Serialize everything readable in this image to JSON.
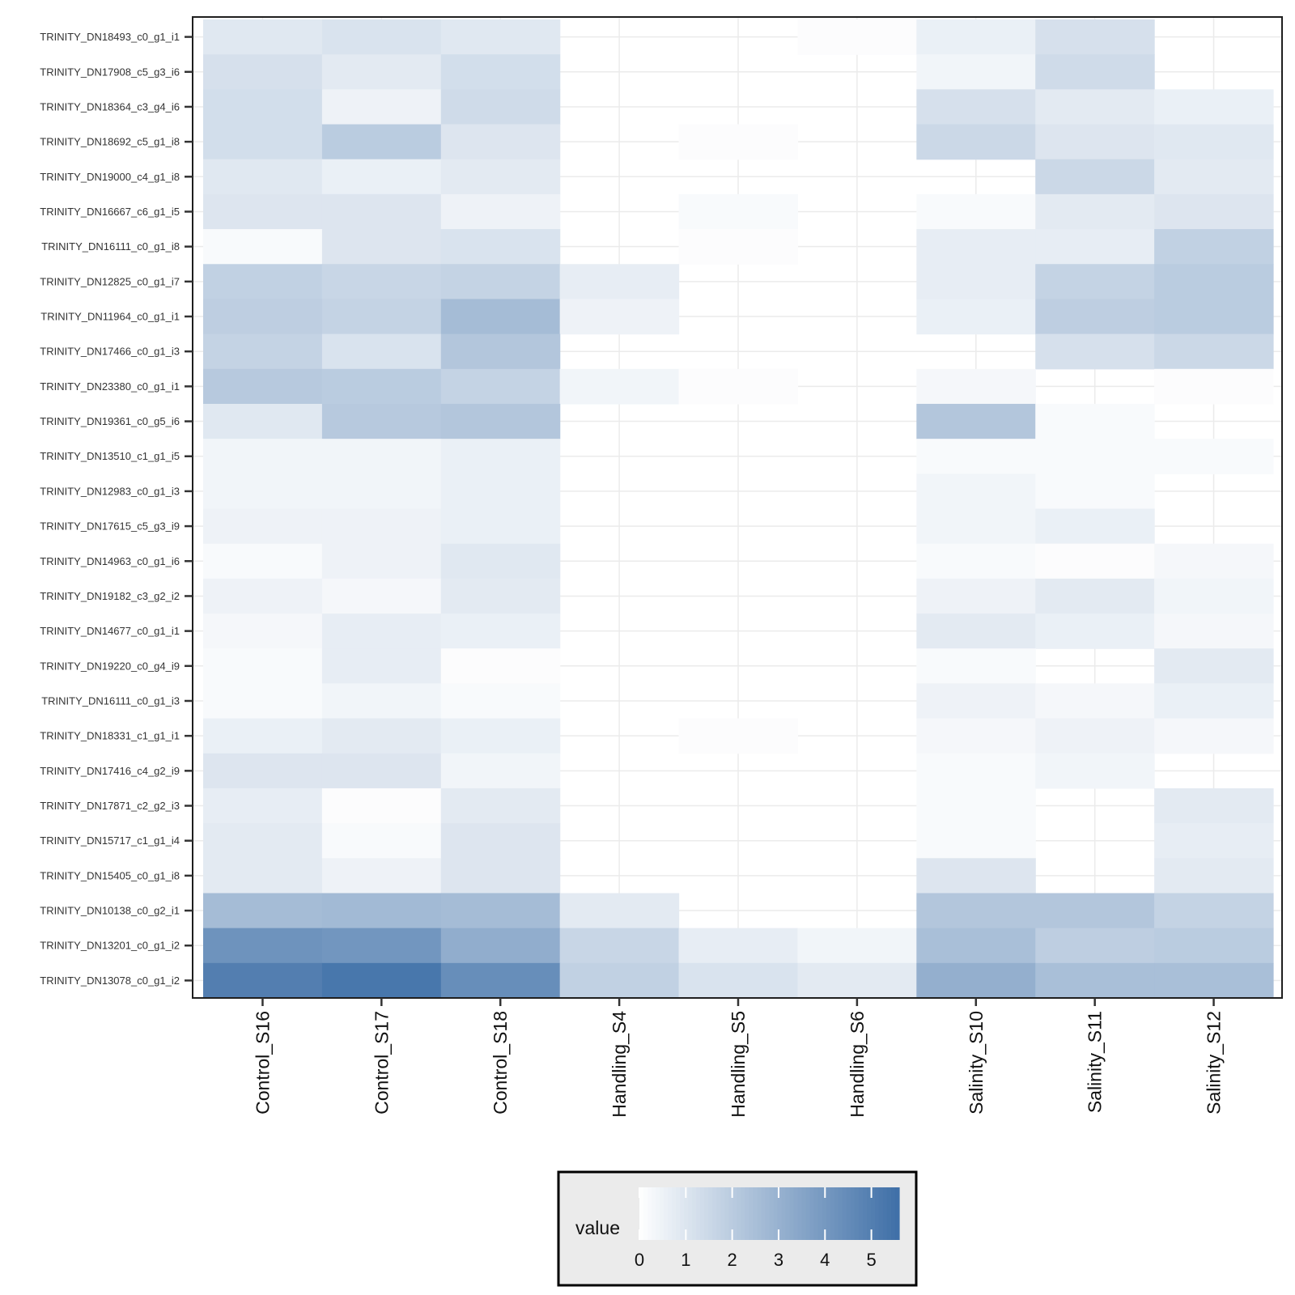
{
  "chart_data": {
    "type": "heatmap",
    "title": "",
    "xlabel": "",
    "ylabel": "",
    "x": [
      "Control_S16",
      "Control_S17",
      "Control_S18",
      "Handling_S4",
      "Handling_S5",
      "Handling_S6",
      "Salinity_S10",
      "Salinity_S11",
      "Salinity_S12"
    ],
    "y": [
      "TRINITY_DN18493_c0_g1_i1",
      "TRINITY_DN17908_c5_g3_i6",
      "TRINITY_DN18364_c3_g4_i6",
      "TRINITY_DN18692_c5_g1_i8",
      "TRINITY_DN19000_c4_g1_i8",
      "TRINITY_DN16667_c6_g1_i5",
      "TRINITY_DN16111_c0_g1_i8",
      "TRINITY_DN12825_c0_g1_i7",
      "TRINITY_DN11964_c0_g1_i1",
      "TRINITY_DN17466_c0_g1_i3",
      "TRINITY_DN23380_c0_g1_i1",
      "TRINITY_DN19361_c0_g5_i6",
      "TRINITY_DN13510_c1_g1_i5",
      "TRINITY_DN12983_c0_g1_i3",
      "TRINITY_DN17615_c5_g3_i9",
      "TRINITY_DN14963_c0_g1_i6",
      "TRINITY_DN19182_c3_g2_i2",
      "TRINITY_DN14677_c0_g1_i1",
      "TRINITY_DN19220_c0_g4_i9",
      "TRINITY_DN16111_c0_g1_i3",
      "TRINITY_DN18331_c1_g1_i1",
      "TRINITY_DN17416_c4_g2_i9",
      "TRINITY_DN17871_c2_g2_i3",
      "TRINITY_DN15717_c1_g1_i4",
      "TRINITY_DN15405_c0_g1_i8",
      "TRINITY_DN10138_c0_g2_i1",
      "TRINITY_DN13201_c0_g1_i2",
      "TRINITY_DN13078_c0_g1_i2"
    ],
    "values": [
      [
        0.9,
        1.1,
        0.9,
        0,
        0,
        0.1,
        0.6,
        1.2,
        0
      ],
      [
        1.2,
        0.8,
        1.3,
        0,
        0,
        0,
        0.4,
        1.4,
        0
      ],
      [
        1.3,
        0.5,
        1.4,
        0,
        0,
        0,
        1.2,
        0.8,
        0.6
      ],
      [
        1.3,
        2.0,
        1.0,
        0,
        0.1,
        0,
        1.5,
        1.0,
        0.9
      ],
      [
        0.9,
        0.6,
        0.8,
        0,
        0,
        0,
        0,
        1.5,
        0.8
      ],
      [
        1.0,
        1.0,
        0.5,
        0,
        0.2,
        0,
        0.2,
        0.8,
        1.0
      ],
      [
        0.2,
        1.0,
        1.1,
        0,
        0.1,
        0,
        0.7,
        0.7,
        1.8
      ],
      [
        1.8,
        1.6,
        1.7,
        0.7,
        0,
        0,
        0.7,
        1.7,
        2.0
      ],
      [
        1.9,
        1.7,
        2.6,
        0.5,
        0,
        0,
        0.6,
        1.9,
        2.0
      ],
      [
        1.7,
        1.1,
        2.2,
        0,
        0,
        0,
        0,
        1.2,
        1.5
      ],
      [
        2.1,
        2.0,
        1.7,
        0.4,
        0.1,
        0,
        0.3,
        0,
        0.1
      ],
      [
        0.9,
        2.1,
        2.2,
        0,
        0,
        0,
        2.2,
        0.2,
        0
      ],
      [
        0.4,
        0.4,
        0.6,
        0,
        0,
        0,
        0.2,
        0.2,
        0.2
      ],
      [
        0.4,
        0.4,
        0.6,
        0,
        0,
        0,
        0.4,
        0.2,
        0
      ],
      [
        0.5,
        0.5,
        0.6,
        0,
        0,
        0,
        0.4,
        0.6,
        0
      ],
      [
        0.2,
        0.5,
        0.9,
        0,
        0,
        0,
        0.2,
        0.1,
        0.3
      ],
      [
        0.5,
        0.3,
        0.8,
        0,
        0,
        0,
        0.5,
        0.8,
        0.4
      ],
      [
        0.3,
        0.7,
        0.6,
        0,
        0,
        0,
        0.8,
        0.6,
        0.3
      ],
      [
        0.2,
        0.7,
        0.1,
        0,
        0,
        0,
        0.2,
        0,
        0.8
      ],
      [
        0.2,
        0.4,
        0.2,
        0,
        0,
        0,
        0.5,
        0.3,
        0.6
      ],
      [
        0.6,
        0.8,
        0.6,
        0,
        0.1,
        0,
        0.3,
        0.5,
        0.3
      ],
      [
        1.0,
        1.0,
        0.4,
        0,
        0,
        0,
        0.2,
        0.4,
        0
      ],
      [
        0.7,
        0.1,
        0.8,
        0,
        0,
        0,
        0.2,
        0,
        0.8
      ],
      [
        0.8,
        0.2,
        1.0,
        0,
        0,
        0,
        0.2,
        0,
        0.7
      ],
      [
        0.8,
        0.5,
        1.0,
        0,
        0,
        0,
        1.0,
        0,
        0.8
      ],
      [
        2.6,
        2.7,
        2.6,
        0.8,
        0,
        0,
        2.2,
        2.2,
        1.7
      ],
      [
        4.2,
        4.1,
        3.2,
        1.6,
        0.7,
        0.4,
        2.5,
        1.9,
        2.0
      ],
      [
        5.0,
        5.3,
        4.4,
        1.8,
        1.1,
        0.8,
        3.1,
        2.5,
        2.5
      ]
    ],
    "colorscale": {
      "low": "#ffffff",
      "high": "#3e6fa7",
      "min": 0,
      "max": 5.6
    },
    "legend": {
      "title": "value",
      "position": "bottom",
      "ticks": [
        "0",
        "1",
        "2",
        "3",
        "4",
        "5"
      ]
    },
    "grid": true,
    "colors": {
      "panel_border": "#1f1f1f",
      "grid": "#ebebeb",
      "legend_background": "#ebebeb"
    }
  }
}
